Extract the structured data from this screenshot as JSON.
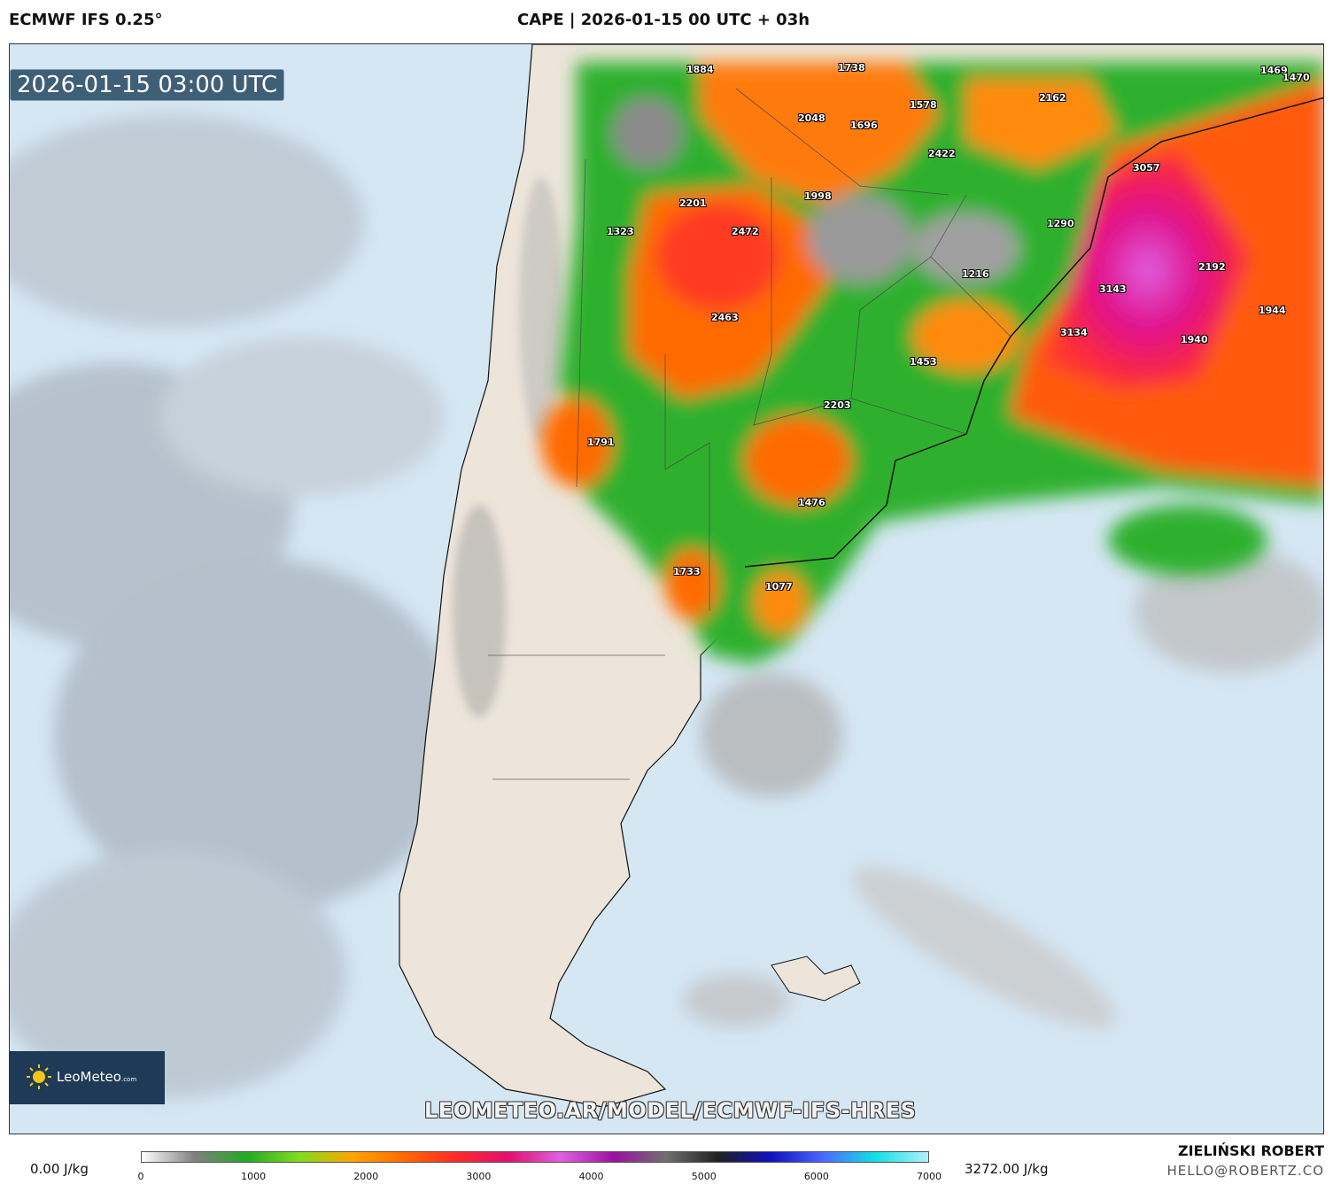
{
  "header": {
    "model": "ECMWF IFS 0.25°",
    "title": "CAPE | 2026-01-15 00 UTC + 03h"
  },
  "map": {
    "timestamp": "2026-01-15 03:00 UTC",
    "watermark": "LEOMETEO.AR/MODEL/ECMWF-IFS-HRES",
    "logo": {
      "name": "LeoMeteo",
      "suffix": ".com"
    },
    "cape_labels": [
      "1884",
      "1738",
      "1469",
      "1470",
      "1578",
      "2048",
      "1696",
      "2162",
      "2422",
      "3057",
      "2201",
      "1998",
      "1323",
      "2472",
      "1290",
      "1216",
      "3143",
      "2192",
      "1944",
      "2463",
      "3134",
      "1940",
      "1453",
      "2203",
      "1791",
      "1476",
      "1733",
      "1077"
    ]
  },
  "legend": {
    "min_label": "0.00 J/kg",
    "max_label": "3272.00 J/kg",
    "ticks": [
      "0",
      "1000",
      "2000",
      "3000",
      "4000",
      "5000",
      "6000",
      "7000"
    ],
    "colors": [
      "#ffffff",
      "#808080",
      "#22aa22",
      "#7fdc1e",
      "#ffa500",
      "#ff6a00",
      "#ff2a2a",
      "#e01070",
      "#e060e0",
      "#9b11a0",
      "#707070",
      "#202020",
      "#1010c0",
      "#4a6aff",
      "#10e0e0",
      "#b0f0ff"
    ]
  },
  "footer": {
    "author": "ZIELIŃSKI ROBERT",
    "email": "HELLO@ROBERTZ.CO"
  }
}
